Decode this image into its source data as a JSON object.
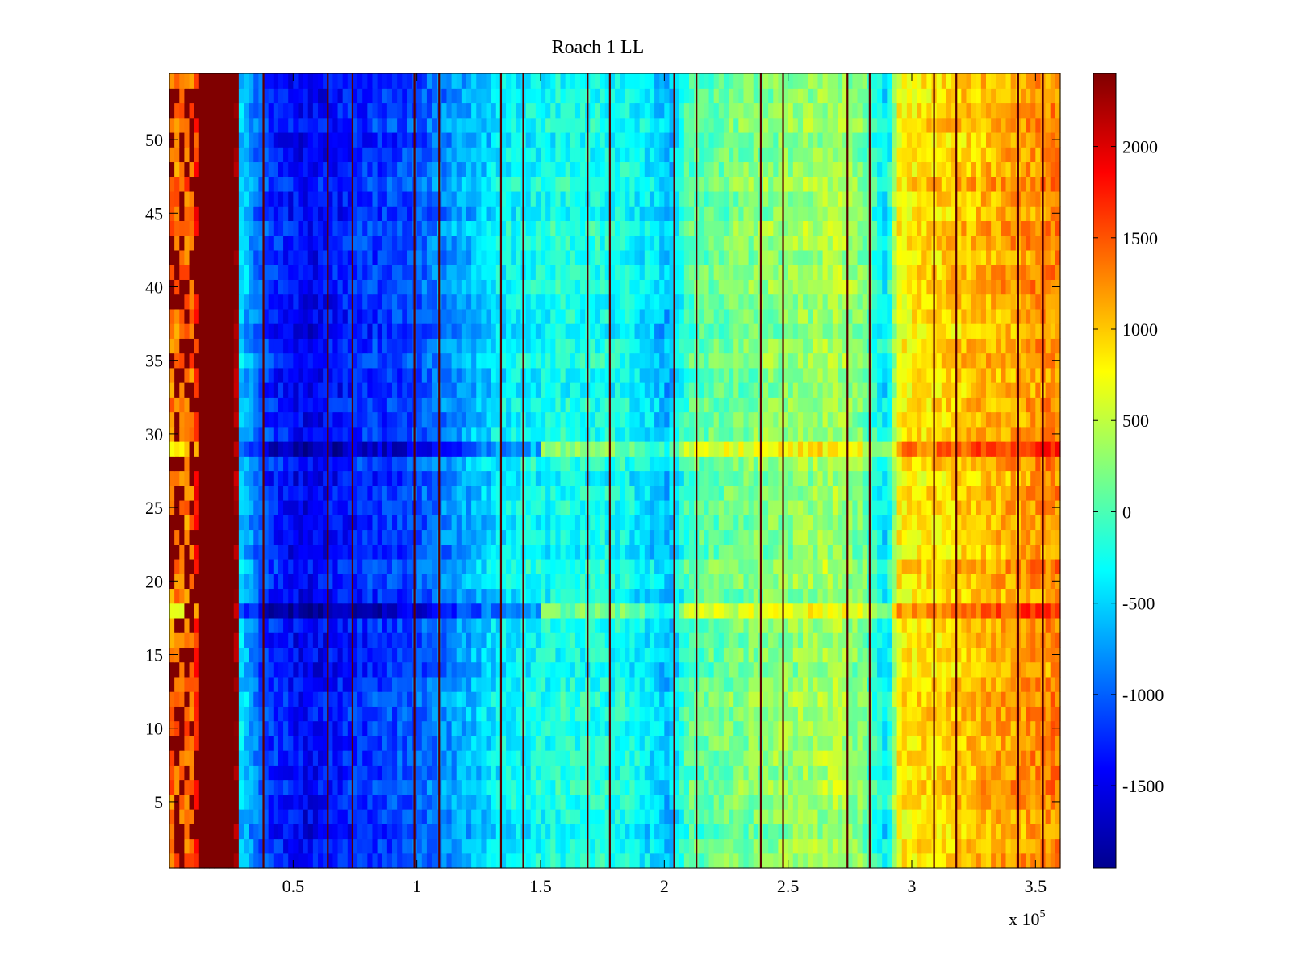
{
  "chart_data": {
    "type": "heatmap",
    "title": "Roach 1 LL",
    "xlabel": "",
    "ylabel": "",
    "x_multiplier_label": "x 10",
    "x_multiplier_exponent": "5",
    "xlim": [
      0,
      3.6
    ],
    "ylim": [
      0.5,
      54.5
    ],
    "n_rows": 54,
    "x_ticks": [
      {
        "value": 0.5,
        "label": "0.5"
      },
      {
        "value": 1,
        "label": "1"
      },
      {
        "value": 1.5,
        "label": "1.5"
      },
      {
        "value": 2,
        "label": "2"
      },
      {
        "value": 2.5,
        "label": "2.5"
      },
      {
        "value": 3,
        "label": "3"
      },
      {
        "value": 3.5,
        "label": "3.5"
      }
    ],
    "y_ticks": [
      {
        "value": 5,
        "label": "5"
      },
      {
        "value": 10,
        "label": "10"
      },
      {
        "value": 15,
        "label": "15"
      },
      {
        "value": 20,
        "label": "20"
      },
      {
        "value": 25,
        "label": "25"
      },
      {
        "value": 30,
        "label": "30"
      },
      {
        "value": 35,
        "label": "35"
      },
      {
        "value": 40,
        "label": "40"
      },
      {
        "value": 45,
        "label": "45"
      },
      {
        "value": 50,
        "label": "50"
      }
    ],
    "colorbar": {
      "colormap": "jet",
      "clim": [
        -1950,
        2400
      ],
      "ticks": [
        {
          "value": -1500,
          "label": "-1500"
        },
        {
          "value": -1000,
          "label": "-1000"
        },
        {
          "value": -500,
          "label": "-500"
        },
        {
          "value": 0,
          "label": "0"
        },
        {
          "value": 500,
          "label": "500"
        },
        {
          "value": 1000,
          "label": "1000"
        },
        {
          "value": 1500,
          "label": "1500"
        },
        {
          "value": 2000,
          "label": "2000"
        }
      ]
    },
    "column_profile": [
      {
        "x": 0.0,
        "v": 1300
      },
      {
        "x": 0.1,
        "v": 1400
      },
      {
        "x": 0.13,
        "v": 2400
      },
      {
        "x": 0.27,
        "v": 2400
      },
      {
        "x": 0.29,
        "v": -500
      },
      {
        "x": 0.4,
        "v": -1200
      },
      {
        "x": 0.55,
        "v": -1450
      },
      {
        "x": 0.75,
        "v": -1250
      },
      {
        "x": 1.0,
        "v": -1050
      },
      {
        "x": 1.15,
        "v": -750
      },
      {
        "x": 1.35,
        "v": -350
      },
      {
        "x": 1.6,
        "v": -200
      },
      {
        "x": 1.85,
        "v": -250
      },
      {
        "x": 1.95,
        "v": -450
      },
      {
        "x": 2.02,
        "v": -650
      },
      {
        "x": 2.1,
        "v": 50
      },
      {
        "x": 2.4,
        "v": 250
      },
      {
        "x": 2.7,
        "v": 400
      },
      {
        "x": 2.8,
        "v": 200
      },
      {
        "x": 2.9,
        "v": -450
      },
      {
        "x": 2.95,
        "v": 800
      },
      {
        "x": 3.2,
        "v": 1000
      },
      {
        "x": 3.6,
        "v": 1300
      }
    ],
    "vertical_streaks": [
      0.38,
      0.64,
      0.74,
      0.99,
      1.09,
      1.34,
      1.43,
      1.69,
      1.78,
      2.04,
      2.13,
      2.39,
      2.48,
      2.74,
      2.83,
      3.09,
      3.18,
      3.43,
      3.53
    ],
    "horizontal_bands": [
      {
        "row": 18,
        "effect": "cool on left, warm on right"
      },
      {
        "row": 29,
        "effect": "cool on left, warm on right"
      }
    ]
  }
}
